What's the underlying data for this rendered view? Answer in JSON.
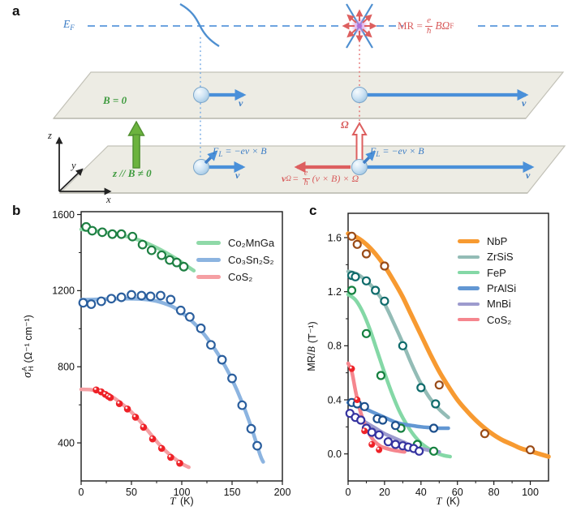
{
  "panel_letters": {
    "a": "a",
    "b": "b",
    "c": "c"
  },
  "diagram": {
    "ef": {
      "base": "E",
      "sub": "F"
    },
    "field_off": "B = 0",
    "field_on": "z // B ≠ 0",
    "omega": "Ω",
    "velocity": "v",
    "lorentz": {
      "base": "F",
      "sub": "L",
      "rest": " = −ev × B"
    },
    "anomalous": {
      "base": "v",
      "sub": "Ω",
      "eq": "=",
      "num": "e",
      "den": "ħ",
      "rest": "(v × B) × Ω"
    },
    "mr": {
      "pre": "MR = ",
      "num": "e",
      "den": "ħ",
      "post": "BΩ",
      "sub": "F"
    },
    "axes": {
      "x": "x",
      "y": "y",
      "z": "z"
    },
    "colors": {
      "blue": "#3a7bc4",
      "red": "#d85b5b",
      "green": "#3f9b3f"
    }
  },
  "chart_data": [
    {
      "type": "scatter+line",
      "panel": "b",
      "xlabel": {
        "var": "T",
        "units": "(K)"
      },
      "ylabel": {
        "sym": "σ",
        "sup": "A",
        "sub": "H",
        "units": "(Ω⁻¹ cm⁻¹)"
      },
      "xlim": [
        0,
        200
      ],
      "ylim": [
        200,
        1615
      ],
      "x_ticks": [
        0,
        50,
        100,
        150,
        200
      ],
      "x_tick_labels": [
        "0",
        "50",
        "100",
        "150",
        "200"
      ],
      "x_minor": [
        25,
        75,
        125,
        175
      ],
      "y_ticks": [
        400,
        800,
        1200,
        1600
      ],
      "y_tick_labels": [
        "400",
        "800",
        "1200",
        "1600"
      ],
      "y_minor": [
        600,
        1000,
        1400
      ],
      "legend_position": "top-right",
      "series": [
        {
          "name": "Co₂MnGa",
          "line_color": "#8fd9a8",
          "point_color": "#1e8043",
          "point_style": "open",
          "points": {
            "x": [
              5,
              11,
              21,
              31,
              40,
              51,
              61,
              70,
              80,
              88,
              95,
              102
            ],
            "y": [
              1535,
              1515,
              1507,
              1497,
              1497,
              1484,
              1442,
              1412,
              1386,
              1361,
              1348,
              1326
            ]
          },
          "line": {
            "x": [
              0,
              10,
              30,
              50,
              65,
              80,
              95,
              105,
              112
            ],
            "y": [
              1522,
              1516,
              1501,
              1478,
              1450,
              1412,
              1366,
              1330,
              1305
            ]
          }
        },
        {
          "name": "Co₃Sn₂S₂",
          "line_color": "#8cb4e0",
          "point_color": "#2b5f9e",
          "point_style": "open",
          "points": {
            "x": [
              2,
              10,
              20,
              30,
              40,
              50,
              60,
              69,
              79,
              89,
              99,
              108,
              119,
              129,
              140,
              150,
              160,
              169,
              175
            ],
            "y": [
              1136,
              1129,
              1144,
              1158,
              1165,
              1178,
              1174,
              1170,
              1174,
              1153,
              1096,
              1062,
              1002,
              915,
              837,
              739,
              598,
              474,
              385
            ]
          },
          "line": {
            "x": [
              0,
              20,
              40,
              60,
              75,
              90,
              100,
              110,
              120,
              130,
              140,
              150,
              160,
              170,
              178,
              181
            ],
            "y": [
              1152,
              1155,
              1158,
              1156,
              1145,
              1118,
              1085,
              1040,
              985,
              915,
              832,
              733,
              612,
              468,
              335,
              300
            ]
          }
        },
        {
          "name": "CoS₂",
          "line_color": "#f59fa3",
          "point_color": "#ee2127",
          "point_style": "filled",
          "points": {
            "x": [
              15,
              20,
              24,
              27,
              29,
              38,
              46,
              54,
              62,
              71,
              80,
              89,
              98
            ],
            "y": [
              678,
              668,
              655,
              645,
              638,
              606,
              578,
              535,
              482,
              421,
              371,
              324,
              293
            ]
          },
          "line": {
            "x": [
              0,
              10,
              20,
              30,
              40,
              50,
              60,
              70,
              80,
              90,
              100,
              107
            ],
            "y": [
              681,
              679,
              668,
              645,
              607,
              562,
              505,
              440,
              378,
              330,
              291,
              272
            ]
          }
        }
      ]
    },
    {
      "type": "scatter+line",
      "panel": "c",
      "xlabel": {
        "var": "T",
        "units": "(K)"
      },
      "ylabel": {
        "pre": "MR/",
        "var": "B",
        "units": "(T⁻¹)"
      },
      "xlim": [
        0,
        110
      ],
      "ylim": [
        -0.2,
        1.78
      ],
      "x_ticks": [
        0,
        20,
        40,
        60,
        80,
        100
      ],
      "x_tick_labels": [
        "0",
        "20",
        "40",
        "60",
        "80",
        "100"
      ],
      "x_minor": [
        10,
        30,
        50,
        70,
        90
      ],
      "y_ticks": [
        0,
        0.4,
        0.8,
        1.2,
        1.6
      ],
      "y_tick_labels": [
        "0.0",
        "0.4",
        "0.8",
        "1.2",
        "1.6"
      ],
      "y_minor": [
        0.2,
        0.6,
        1.0,
        1.4
      ],
      "legend_position": "top-right",
      "series": [
        {
          "name": "NbP",
          "line_color": "#f79a31",
          "point_color": "#9a4b17",
          "point_style": "open",
          "line_width": 5.5,
          "points": {
            "x": [
              2,
              5,
              10,
              20,
              50,
              75,
              100
            ],
            "y": [
              1.61,
              1.55,
              1.48,
              1.39,
              0.51,
              0.15,
              0.03
            ]
          },
          "line": {
            "x": [
              0,
              5,
              10,
              15,
              20,
              25,
              30,
              35,
              40,
              45,
              50,
              55,
              60,
              65,
              70,
              75,
              80,
              85,
              90,
              95,
              100,
              105,
              110
            ],
            "y": [
              1.63,
              1.6,
              1.55,
              1.48,
              1.39,
              1.28,
              1.16,
              1.02,
              0.88,
              0.74,
              0.61,
              0.5,
              0.4,
              0.32,
              0.25,
              0.19,
              0.14,
              0.1,
              0.07,
              0.04,
              0.02,
              0.0,
              -0.02
            ]
          }
        },
        {
          "name": "ZrSiS",
          "line_color": "#93bcb6",
          "point_color": "#0f6b6b",
          "point_style": "open",
          "points": {
            "x": [
              2,
              4,
              10,
              15,
              20,
              30,
              40,
              48
            ],
            "y": [
              1.32,
              1.31,
              1.28,
              1.21,
              1.13,
              0.8,
              0.49,
              0.37
            ]
          },
          "line": {
            "x": [
              0,
              5,
              10,
              15,
              20,
              25,
              30,
              35,
              40,
              45,
              50,
              55
            ],
            "y": [
              1.35,
              1.33,
              1.28,
              1.21,
              1.11,
              0.97,
              0.82,
              0.66,
              0.52,
              0.41,
              0.33,
              0.27
            ]
          }
        },
        {
          "name": "FeP",
          "line_color": "#84d8a6",
          "point_color": "#15803f",
          "point_style": "open",
          "points": {
            "x": [
              2,
              10,
              18,
              29,
              38,
              47
            ],
            "y": [
              1.21,
              0.89,
              0.58,
              0.19,
              0.07,
              0.02
            ]
          },
          "line": {
            "x": [
              0,
              4,
              8,
              12,
              16,
              20,
              24,
              28,
              32,
              36,
              40,
              44,
              48,
              52,
              56
            ],
            "y": [
              1.18,
              1.14,
              1.05,
              0.92,
              0.76,
              0.6,
              0.45,
              0.32,
              0.22,
              0.14,
              0.08,
              0.04,
              0.01,
              -0.01,
              -0.02
            ]
          }
        },
        {
          "name": "PrAlSi",
          "line_color": "#6297d3",
          "point_color": "#1c4f8c",
          "point_style": "open",
          "points": {
            "x": [
              2,
              5,
              9,
              16,
              19,
              26,
              47
            ],
            "y": [
              0.38,
              0.37,
              0.35,
              0.26,
              0.25,
              0.21,
              0.19
            ]
          },
          "line": {
            "x": [
              0,
              5,
              10,
              15,
              20,
              25,
              30,
              35,
              40,
              45,
              50,
              55
            ],
            "y": [
              0.38,
              0.36,
              0.33,
              0.3,
              0.27,
              0.24,
              0.22,
              0.21,
              0.2,
              0.195,
              0.19,
              0.19
            ]
          }
        },
        {
          "name": "MnBi",
          "line_color": "#9d9bce",
          "point_color": "#3533a0",
          "point_style": "open",
          "points": {
            "x": [
              1,
              4,
              7,
              10,
              13,
              17,
              22,
              26,
              30,
              33,
              36,
              39
            ],
            "y": [
              0.3,
              0.27,
              0.25,
              0.19,
              0.16,
              0.14,
              0.09,
              0.07,
              0.06,
              0.05,
              0.04,
              0.02
            ]
          },
          "line": {
            "x": [
              0,
              5,
              10,
              15,
              20,
              25,
              30,
              35,
              40,
              45,
              50
            ],
            "y": [
              0.31,
              0.27,
              0.23,
              0.19,
              0.15,
              0.12,
              0.09,
              0.06,
              0.04,
              0.025,
              0.015
            ]
          }
        },
        {
          "name": "CoS₂",
          "line_color": "#f5868e",
          "point_color": "#ee2127",
          "point_style": "filled",
          "points": {
            "x": [
              2,
              5,
              9,
              13,
              17
            ],
            "y": [
              0.63,
              0.4,
              0.17,
              0.07,
              0.03
            ]
          },
          "line": {
            "x": [
              0,
              2,
              4,
              6,
              8,
              10,
              12,
              14,
              16,
              18,
              20,
              24,
              28,
              31
            ],
            "y": [
              0.67,
              0.61,
              0.47,
              0.35,
              0.26,
              0.19,
              0.14,
              0.1,
              0.075,
              0.055,
              0.045,
              0.03,
              0.02,
              0.015
            ]
          }
        }
      ]
    }
  ]
}
